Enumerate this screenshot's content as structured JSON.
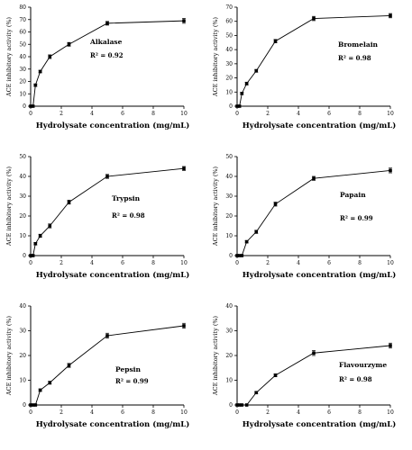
{
  "chart_data": [
    {
      "type": "line",
      "title": "",
      "xlabel": "Hydrolysate concentration (mg/mL)",
      "ylabel": "ACE inhibitory activity (%)",
      "xlim": [
        0,
        10
      ],
      "ylim": [
        0,
        80
      ],
      "xticks": [
        0,
        2,
        4,
        6,
        8,
        10
      ],
      "yticks": [
        0,
        10,
        20,
        30,
        40,
        50,
        60,
        70,
        80
      ],
      "x": [
        0,
        0.156,
        0.3125,
        0.625,
        1.25,
        2.5,
        5,
        10
      ],
      "series": [
        {
          "name": "Alkalase",
          "values": [
            0,
            0,
            17,
            28,
            40,
            50,
            67,
            69
          ],
          "errors": [
            0,
            0,
            1,
            1,
            1.5,
            1.5,
            1.5,
            2
          ]
        }
      ],
      "annotation": "R² = 0.92",
      "annotation_html": "R<tspan baseline-shift='super' font-size='5'>2</tspan> = 0.92"
    },
    {
      "type": "line",
      "title": "",
      "xlabel": "Hydrolysate concentration (mg/mL)",
      "ylabel": "ACE inhibitory activity (%)",
      "xlim": [
        0,
        10
      ],
      "ylim": [
        0,
        70
      ],
      "xticks": [
        0,
        2,
        4,
        6,
        8,
        10
      ],
      "yticks": [
        0,
        10,
        20,
        30,
        40,
        50,
        60,
        70
      ],
      "x": [
        0,
        0.156,
        0.3125,
        0.625,
        1.25,
        2.5,
        5,
        10
      ],
      "series": [
        {
          "name": "Bromelain",
          "values": [
            0,
            0,
            9,
            16,
            25,
            46,
            62,
            64
          ],
          "errors": [
            0,
            0,
            0.8,
            1,
            1,
            1.2,
            1.5,
            1.5
          ]
        }
      ],
      "annotation": "R² = 0.98"
    },
    {
      "type": "line",
      "title": "",
      "xlabel": "Hydrolysate concentration (mg/mL)",
      "ylabel": "ACE inhibitory activity (%)",
      "xlim": [
        0,
        10
      ],
      "ylim": [
        0,
        50
      ],
      "xticks": [
        0,
        2,
        4,
        6,
        8,
        10
      ],
      "yticks": [
        0,
        10,
        20,
        30,
        40,
        50
      ],
      "x": [
        0,
        0.156,
        0.3125,
        0.625,
        1.25,
        2.5,
        5,
        10
      ],
      "series": [
        {
          "name": "Trypsin",
          "values": [
            0,
            0,
            6,
            10,
            15,
            27,
            40,
            44
          ],
          "errors": [
            0,
            0,
            0.6,
            0.8,
            1,
            1,
            1,
            1
          ]
        }
      ],
      "annotation": "R² = 0.98"
    },
    {
      "type": "line",
      "title": "",
      "xlabel": "Hydrolysate concentration (mg/mL)",
      "ylabel": "ACE inhibitory activity (%)",
      "xlim": [
        0,
        10
      ],
      "ylim": [
        0,
        50
      ],
      "xticks": [
        0,
        2,
        4,
        6,
        8,
        10
      ],
      "yticks": [
        0,
        10,
        20,
        30,
        40,
        50
      ],
      "x": [
        0,
        0.156,
        0.3125,
        0.625,
        1.25,
        2.5,
        5,
        10
      ],
      "series": [
        {
          "name": "Papain",
          "values": [
            0,
            0,
            0,
            7,
            12,
            26,
            39,
            43
          ],
          "errors": [
            0,
            0,
            0,
            0.6,
            0.8,
            1,
            1,
            1.2
          ]
        }
      ],
      "annotation": "R² = 0.99"
    },
    {
      "type": "line",
      "title": "",
      "xlabel": "Hydrolysate concentration (mg/mL)",
      "ylabel": "ACE inhibitory activity (%)",
      "xlim": [
        0,
        10
      ],
      "ylim": [
        0,
        40
      ],
      "xticks": [
        0,
        2,
        4,
        6,
        8,
        10
      ],
      "yticks": [
        0,
        10,
        20,
        30,
        40
      ],
      "x": [
        0,
        0.156,
        0.3125,
        0.625,
        1.25,
        2.5,
        5,
        10
      ],
      "series": [
        {
          "name": "Pepsin",
          "values": [
            0,
            0,
            0,
            6,
            9,
            16,
            28,
            32
          ],
          "errors": [
            0,
            0,
            0,
            0.5,
            0.6,
            0.8,
            1,
            1
          ]
        }
      ],
      "annotation": "R² = 0.99"
    },
    {
      "type": "line",
      "title": "",
      "xlabel": "Hydrolysate concentration (mg/mL)",
      "ylabel": "ACE inhibitory activity (%)",
      "xlim": [
        0,
        10
      ],
      "ylim": [
        0,
        40
      ],
      "xticks": [
        0,
        2,
        4,
        6,
        8,
        10
      ],
      "yticks": [
        0,
        10,
        20,
        30,
        40
      ],
      "x": [
        0,
        0.156,
        0.3125,
        0.625,
        1.25,
        2.5,
        5,
        10
      ],
      "series": [
        {
          "name": "Flavourzyme",
          "values": [
            0,
            0,
            0,
            0,
            5,
            12,
            21,
            24
          ],
          "errors": [
            0,
            0,
            0,
            0,
            0.4,
            0.6,
            1,
            1
          ]
        }
      ],
      "annotation": "R² = 0.98"
    }
  ]
}
